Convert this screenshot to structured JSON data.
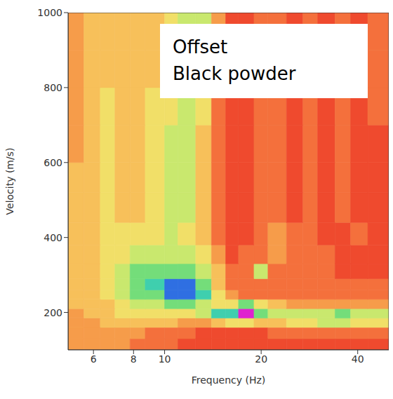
{
  "chart_data": {
    "type": "heatmap",
    "x_label": "Frequency (Hz)",
    "y_label": "Velocity (m/s)",
    "annotation": [
      "Offset",
      "Black powder"
    ],
    "log": "x",
    "grid": false,
    "xlim": [
      5,
      50
    ],
    "xticks": [
      6,
      8,
      10,
      20,
      40
    ],
    "ylim": [
      100,
      1000
    ],
    "yticks": [
      200,
      400,
      600,
      800,
      1000
    ],
    "x_edges": [
      5,
      5.6,
      6.3,
      7,
      7.8,
      8.7,
      10,
      11,
      12.5,
      14,
      15.5,
      17,
      19,
      21,
      24,
      27,
      30,
      34,
      38,
      43,
      50
    ],
    "y_edges": [
      100,
      130,
      160,
      185,
      210,
      235,
      260,
      290,
      330,
      380,
      440,
      520,
      600,
      700,
      800,
      900,
      1000
    ],
    "color_range": [
      0,
      9
    ],
    "cells": [
      [
        2,
        2,
        2,
        2,
        1,
        1,
        1,
        0,
        0,
        0,
        0,
        0,
        0,
        0,
        0,
        0,
        0,
        0,
        0,
        0
      ],
      [
        2,
        2,
        2,
        2,
        2,
        1,
        1,
        1,
        0,
        0,
        0,
        0,
        0,
        1,
        1,
        1,
        1,
        1,
        1,
        1
      ],
      [
        2,
        2,
        3,
        3,
        3,
        3,
        3,
        2,
        2,
        3,
        4,
        4,
        3,
        3,
        4,
        4,
        5,
        5,
        4,
        4
      ],
      [
        2,
        3,
        3,
        4,
        4,
        4,
        4,
        4,
        5,
        7,
        7,
        9,
        6,
        5,
        5,
        5,
        5,
        6,
        5,
        5
      ],
      [
        3,
        3,
        3,
        4,
        5,
        5,
        6,
        6,
        5,
        4,
        4,
        6,
        4,
        3,
        2,
        2,
        2,
        2,
        2,
        2
      ],
      [
        3,
        3,
        4,
        5,
        6,
        6,
        8,
        8,
        7,
        4,
        2,
        1,
        1,
        1,
        1,
        1,
        1,
        1,
        1,
        1
      ],
      [
        3,
        3,
        4,
        5,
        6,
        7,
        8,
        8,
        6,
        3,
        1,
        1,
        1,
        1,
        1,
        1,
        1,
        1,
        1,
        1
      ],
      [
        3,
        3,
        4,
        5,
        6,
        6,
        6,
        6,
        5,
        3,
        1,
        1,
        5,
        1,
        1,
        1,
        1,
        0,
        0,
        0
      ],
      [
        3,
        3,
        4,
        4,
        5,
        5,
        5,
        5,
        4,
        2,
        0,
        1,
        1,
        2,
        1,
        1,
        1,
        0,
        0,
        0
      ],
      [
        3,
        3,
        4,
        4,
        4,
        4,
        5,
        4,
        3,
        1,
        0,
        0,
        1,
        2,
        1,
        1,
        0,
        0,
        1,
        0
      ],
      [
        3,
        3,
        4,
        3,
        3,
        4,
        5,
        5,
        3,
        1,
        0,
        0,
        1,
        1,
        0,
        1,
        0,
        1,
        0,
        0
      ],
      [
        3,
        3,
        4,
        3,
        3,
        4,
        5,
        5,
        3,
        1,
        0,
        0,
        1,
        1,
        0,
        1,
        0,
        1,
        0,
        0
      ],
      [
        2,
        3,
        4,
        3,
        3,
        4,
        5,
        5,
        3,
        1,
        0,
        0,
        1,
        1,
        0,
        1,
        0,
        1,
        0,
        0
      ],
      [
        2,
        3,
        4,
        3,
        3,
        4,
        4,
        5,
        4,
        1,
        0,
        0,
        1,
        1,
        0,
        1,
        0,
        1,
        0,
        1
      ],
      [
        2,
        3,
        3,
        3,
        3,
        3,
        4,
        5,
        4,
        1,
        0,
        0,
        1,
        1,
        0,
        1,
        0,
        1,
        0,
        1
      ],
      [
        2,
        3,
        3,
        3,
        3,
        3,
        4,
        5,
        5,
        2,
        0,
        0,
        1,
        1,
        0,
        1,
        0,
        1,
        0,
        1
      ]
    ]
  }
}
